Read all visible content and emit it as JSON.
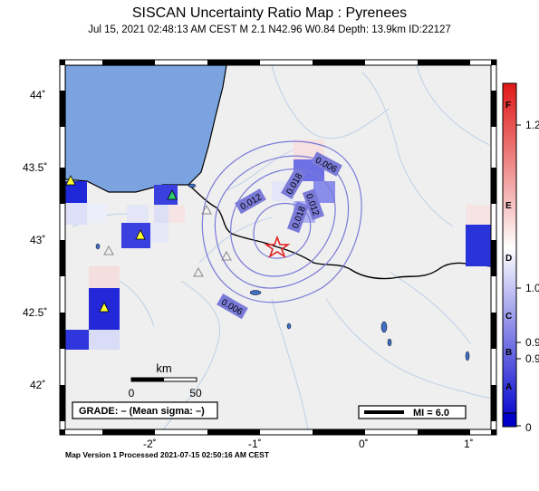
{
  "header": {
    "title": "SISCAN Uncertainty Ratio Map : Pyrenees",
    "subtitle": "Jul 15, 2021 02:48:13 AM CEST   M 2.1    N42.96 W0.84   Depth: 13.9km   ID:22127"
  },
  "map": {
    "lat_labels": [
      "44˚",
      "43.5˚",
      "43˚",
      "42.5˚",
      "42˚"
    ],
    "lon_labels": [
      "-2˚",
      "-1˚",
      "0˚",
      "1˚"
    ],
    "contour_labels": [
      "0.006",
      "0.018",
      "0.012",
      "0.012",
      "0.018",
      "0.006"
    ],
    "scale_bar": {
      "unit": "km",
      "min": "0",
      "max": "50"
    },
    "grade_text": "GRADE: – (Mean sigma: –)",
    "mi_text": "MI = 6.0",
    "colors": {
      "sea": "#7aa3e0",
      "land": "#efefef",
      "epicenter": "#e02020",
      "contour": "#7a7ad8"
    }
  },
  "colorbar": {
    "values": [
      "1.2",
      "1.0",
      "0.9",
      "0.9",
      "0"
    ],
    "letters": [
      "F",
      "E",
      "D",
      "C",
      "B",
      "A"
    ],
    "colors": {
      "top": "#e01818",
      "middle": "#ffffff",
      "bottom": "#0000c8"
    }
  },
  "footer": {
    "processed": "Map Version 1 Processed 2021-07-15 02:50:16 AM CEST"
  }
}
